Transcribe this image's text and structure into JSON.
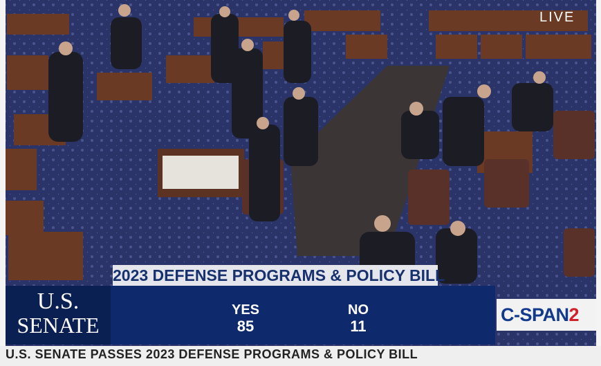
{
  "live": "LIVE",
  "banner": {
    "title": "2023 DEFENSE PROGRAMS & POLICY BILL"
  },
  "network_bug": {
    "line1": "U.S.",
    "line2": "SENATE"
  },
  "vote": {
    "yes_label": "YES",
    "yes": 85,
    "no_label": "NO",
    "no": 11
  },
  "logo": {
    "name": "C-SPAN",
    "number": "2"
  },
  "ticker": "U.S. SENATE PASSES 2023 DEFENSE PROGRAMS & POLICY BILL"
}
